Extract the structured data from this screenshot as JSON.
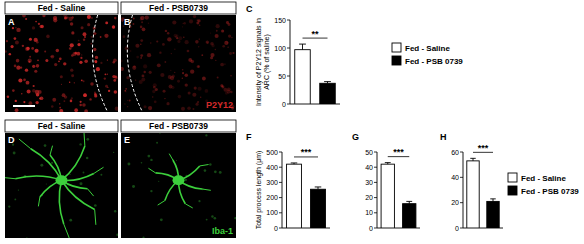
{
  "figure": {
    "images": [
      {
        "panel": "A",
        "header": "Fed - Saline",
        "color": "#d42a2a"
      },
      {
        "panel": "B",
        "header": "Fed - PSB0739",
        "stain": "P2Y12",
        "color": "#d42a2a"
      },
      {
        "panel": "D",
        "header": "Fed - Saline",
        "color": "#3ccf3c"
      },
      {
        "panel": "E",
        "header": "Fed - PSB0739",
        "stain": "Iba-1",
        "color": "#3ccf3c"
      }
    ]
  },
  "chart_data": [
    {
      "type": "bar",
      "panel": "C",
      "y_label": "Intensity of P2Y12 signals in ARC (% of saline)",
      "ylim": [
        0,
        150
      ],
      "yticks": [
        0,
        50,
        100,
        150
      ],
      "annotation": "**",
      "legend": "right",
      "series": [
        {
          "name": "Fed - Saline",
          "color": "#ffffff",
          "values": [
            97
          ],
          "errors": [
            10
          ]
        },
        {
          "name": "Fed - PSB 0739",
          "color": "#000000",
          "values": [
            37
          ],
          "errors": [
            3
          ]
        }
      ]
    },
    {
      "type": "bar",
      "panel": "F",
      "y_label": "Total process length (μm)",
      "ylim": [
        0,
        500
      ],
      "yticks": [
        0,
        100,
        200,
        300,
        400,
        500
      ],
      "annotation": "***",
      "series": [
        {
          "color": "#ffffff",
          "values": [
            420
          ],
          "errors": [
            8
          ]
        },
        {
          "color": "#000000",
          "values": [
            255
          ],
          "errors": [
            15
          ]
        }
      ]
    },
    {
      "type": "bar",
      "panel": "G",
      "ylim": [
        0,
        50
      ],
      "yticks": [
        0,
        10,
        20,
        30,
        40,
        50
      ],
      "annotation": "***",
      "series": [
        {
          "color": "#ffffff",
          "values": [
            42
          ],
          "errors": [
            1
          ]
        },
        {
          "color": "#000000",
          "values": [
            16
          ],
          "errors": [
            1.5
          ]
        }
      ]
    },
    {
      "type": "bar",
      "panel": "H",
      "ylim": [
        0,
        60
      ],
      "yticks": [
        0,
        20,
        40,
        60
      ],
      "annotation": "***",
      "legend": "right",
      "series": [
        {
          "name": "Fed - Saline",
          "color": "#ffffff",
          "values": [
            53
          ],
          "errors": [
            2
          ]
        },
        {
          "name": "Fed - PSB 0739",
          "color": "#000000",
          "values": [
            21
          ],
          "errors": [
            2
          ]
        }
      ]
    }
  ]
}
